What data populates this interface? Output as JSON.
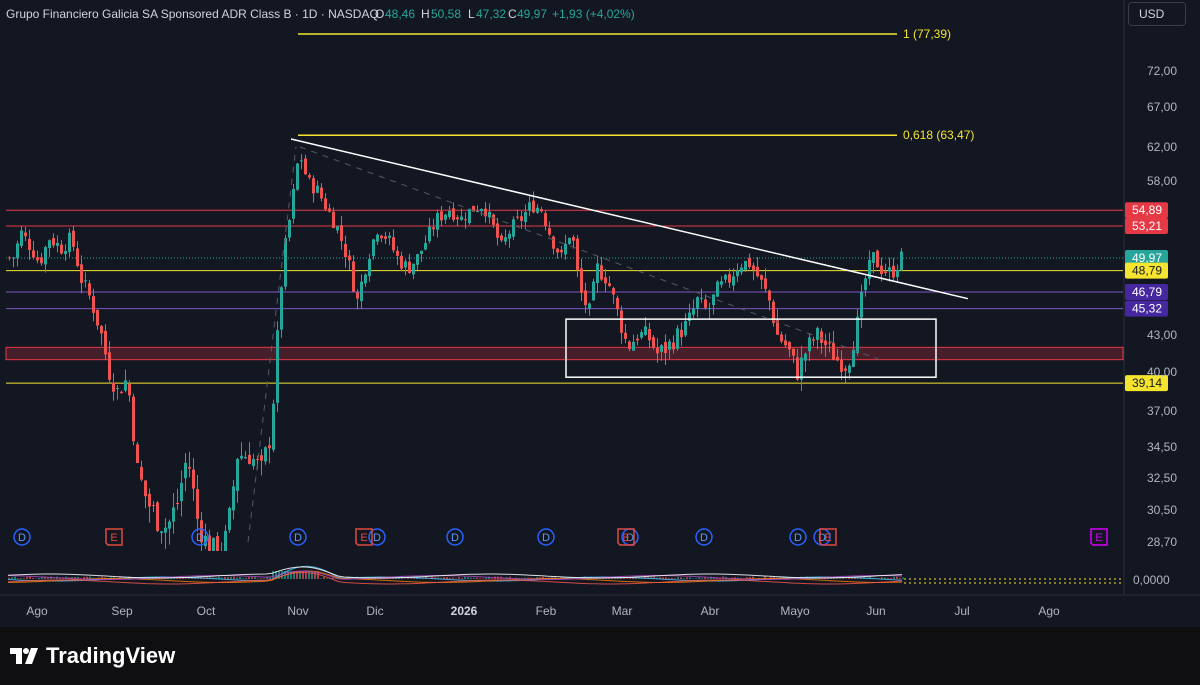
{
  "header": {
    "symbol_title": "Grupo Financiero Galicia SA Sponsored ADR Class B · 1D · NASDAQ",
    "o_label": "O",
    "o_value": "48,46",
    "h_label": "H",
    "h_value": "50,58",
    "l_label": "L",
    "l_value": "47,32",
    "c_label": "C",
    "c_value": "49,97",
    "change": "+1,93 (+4,02%)"
  },
  "currency_button": "USD",
  "footer": {
    "brand": "TradingView"
  },
  "colors": {
    "background": "#131722",
    "up": "#26a69a",
    "down": "#ef5350",
    "fib": "#f5e52f",
    "red_level": "#e53945",
    "purple_level": "#7e57c2",
    "trendline": "#ffffff",
    "dividend": "#2962ff",
    "earnings": "#e04a3f"
  },
  "chart_data": {
    "type": "candlestick",
    "y_axis": {
      "range": [
        28.0,
        79.5
      ],
      "tick_labels": [
        "72,00",
        "67,00",
        "62,00",
        "58,00",
        "53,21",
        "49,97",
        "46,79",
        "43,00",
        "40,00",
        "37,00",
        "34,50",
        "32,50",
        "30,50",
        "28,70"
      ],
      "tick_values": [
        72,
        67,
        62,
        58,
        53.21,
        49.97,
        46.79,
        43,
        40,
        37,
        34.5,
        32.5,
        30.5,
        28.7
      ]
    },
    "x_axis": {
      "labels": [
        "Ago",
        "Sep",
        "Oct",
        "Nov",
        "Dic",
        "2026",
        "Feb",
        "Mar",
        "Abr",
        "Mayo",
        "Jun",
        "Jul",
        "Ago"
      ]
    },
    "fib_levels": [
      {
        "label": "1 (77,39)",
        "value": 77.39
      },
      {
        "label": "0,618 (63,47)",
        "value": 63.47
      }
    ],
    "horizontal_levels": [
      {
        "value": 54.89,
        "label": "54,89",
        "kind": "red"
      },
      {
        "value": 53.21,
        "label": "53,21",
        "kind": "red"
      },
      {
        "value": 49.97,
        "label": "49,97",
        "kind": "price"
      },
      {
        "value": 48.79,
        "label": "48,79",
        "kind": "yellow"
      },
      {
        "value": 46.79,
        "label": "46,79",
        "kind": "purple"
      },
      {
        "value": 45.32,
        "label": "45,32",
        "kind": "purple"
      },
      {
        "value": 39.14,
        "label": "39,14",
        "kind": "yellow"
      }
    ],
    "support_zone": {
      "from": 41.0,
      "to": 42.0
    },
    "range_box": {
      "top": 44.4,
      "bottom": 39.6,
      "start": "Feb",
      "end": "Jun"
    },
    "trendline": {
      "from": 63.0,
      "to": 46.2
    },
    "oscillator_label": "0,0000",
    "dividend_markers": [
      "D",
      "D",
      "D",
      "D",
      "D",
      "D",
      "D",
      "D",
      "D",
      "D"
    ],
    "earnings_markers": [
      "E",
      "E",
      "E",
      "E",
      "E",
      "E"
    ],
    "last_price": 49.97
  }
}
